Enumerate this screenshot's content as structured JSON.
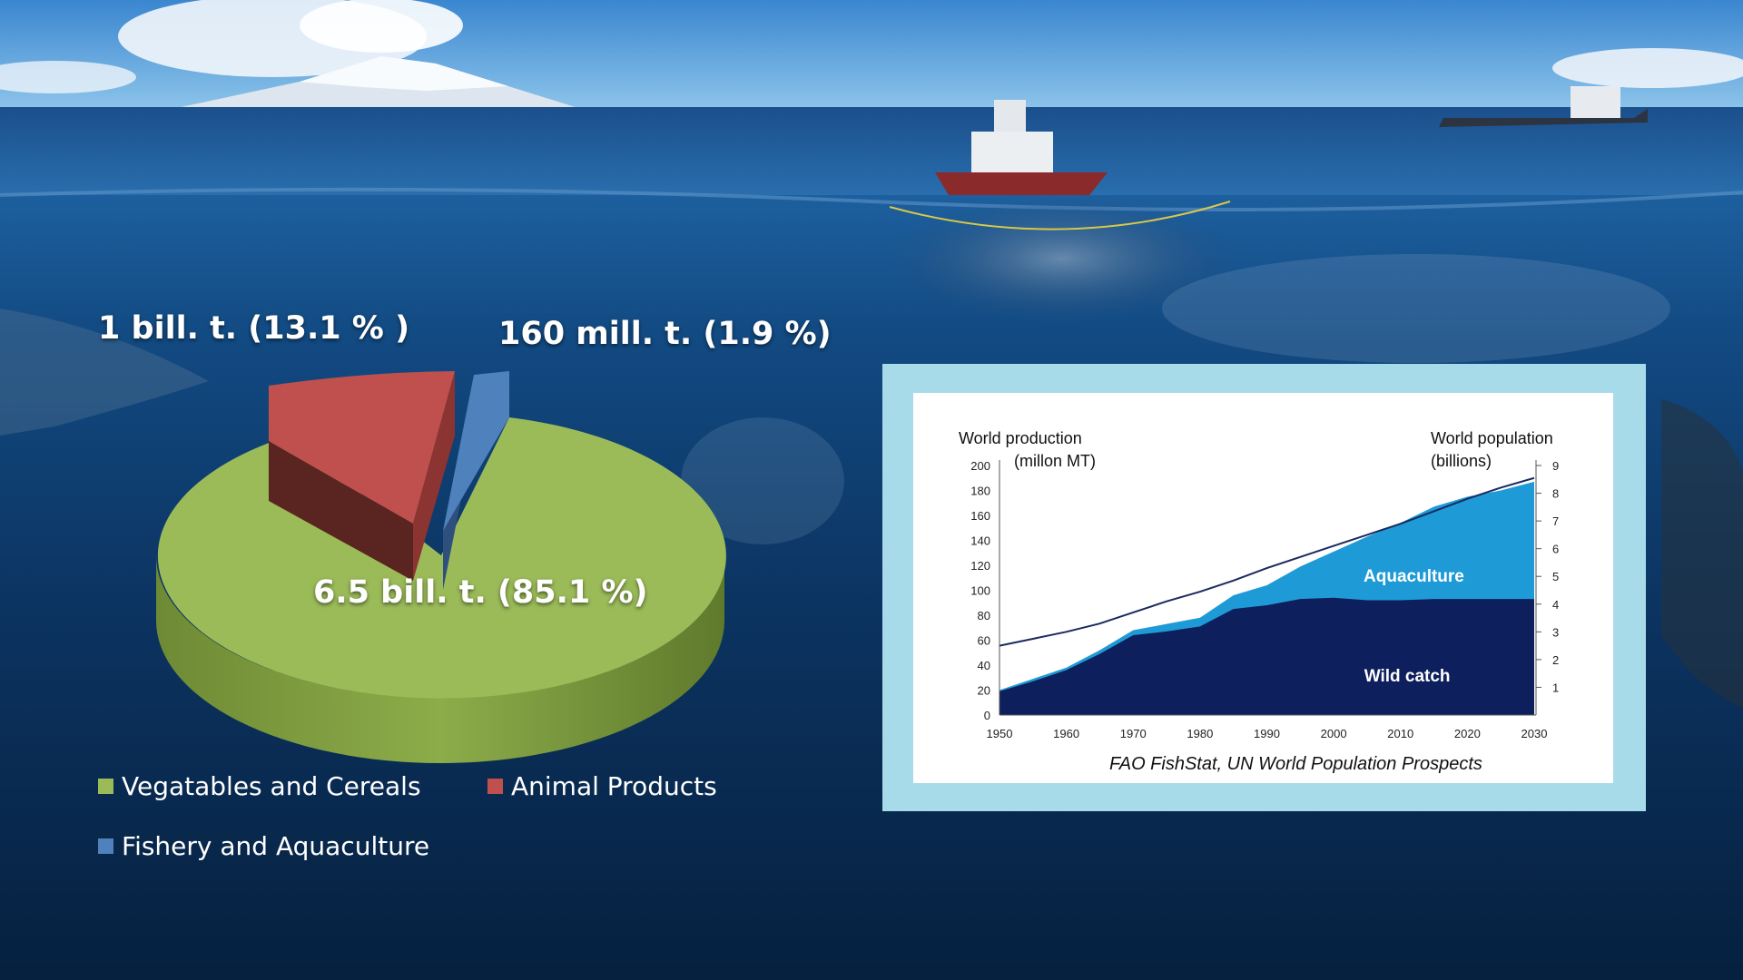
{
  "pie": {
    "labels": {
      "animal": "1 bill. t. (13.1 % )",
      "fishery": "160 mill. t. (1.9  %)",
      "vegetables": "6.5 bill. t. (85.1 %)"
    },
    "legend": {
      "vegetables": "Vegatables and Cereals",
      "animal": "Animal Products",
      "fishery": "Fishery and Aquaculture"
    }
  },
  "line_chart": {
    "ylabel_left_line1": "World production",
    "ylabel_left_line2": "(millon MT)",
    "ylabel_right_line1": "World population",
    "ylabel_right_line2": "(billions)",
    "series_label_aquaculture": "Aquaculture",
    "series_label_wild": "Wild catch",
    "source": "FAO FishStat, UN World Population Prospects"
  },
  "chart_data": [
    {
      "type": "pie",
      "categories": [
        "Vegatables and Cereals",
        "Animal Products",
        "Fishery and Aquaculture"
      ],
      "values": [
        85.1,
        13.1,
        1.9
      ],
      "colors": [
        "#9bbb59",
        "#c0504d",
        "#4f81bd"
      ],
      "data_labels": [
        "6.5 bill. t. (85.1 %)",
        "1 bill. t. (13.1 % )",
        "160 mill. t. (1.9  %)"
      ],
      "legend": "bottom"
    },
    {
      "type": "area",
      "x": [
        1950,
        1955,
        1960,
        1965,
        1970,
        1975,
        1980,
        1985,
        1990,
        1995,
        2000,
        2005,
        2010,
        2015,
        2020,
        2025,
        2030
      ],
      "xticks": [
        1950,
        1960,
        1970,
        1980,
        1990,
        2000,
        2010,
        2020,
        2030
      ],
      "yticks_left": [
        0,
        20,
        40,
        60,
        80,
        100,
        120,
        140,
        160,
        180,
        200
      ],
      "yticks_right": [
        1,
        2,
        3,
        4,
        5,
        6,
        7,
        8,
        9
      ],
      "ylim_left": [
        0,
        200
      ],
      "ylim_right": [
        0,
        9
      ],
      "series": [
        {
          "name": "Wild catch",
          "axis": "left",
          "color": "#0d1f5c",
          "values": [
            19,
            27,
            36,
            49,
            64,
            67,
            71,
            85,
            88,
            93,
            94,
            92,
            92,
            93,
            93,
            93,
            93
          ]
        },
        {
          "name": "Aquaculture",
          "axis": "left",
          "color": "#1e9ad6",
          "stacked": true,
          "values": [
            1,
            2,
            2,
            3,
            4,
            6,
            7,
            11,
            16,
            26,
            37,
            51,
            62,
            74,
            82,
            87,
            94
          ]
        },
        {
          "type": "line",
          "axis": "right",
          "color": "#1b2a5e",
          "values": [
            2.5,
            2.75,
            3.0,
            3.3,
            3.7,
            4.1,
            4.45,
            4.85,
            5.3,
            5.7,
            6.1,
            6.5,
            6.9,
            7.35,
            7.8,
            8.2,
            8.55
          ]
        }
      ],
      "grid": false
    }
  ]
}
